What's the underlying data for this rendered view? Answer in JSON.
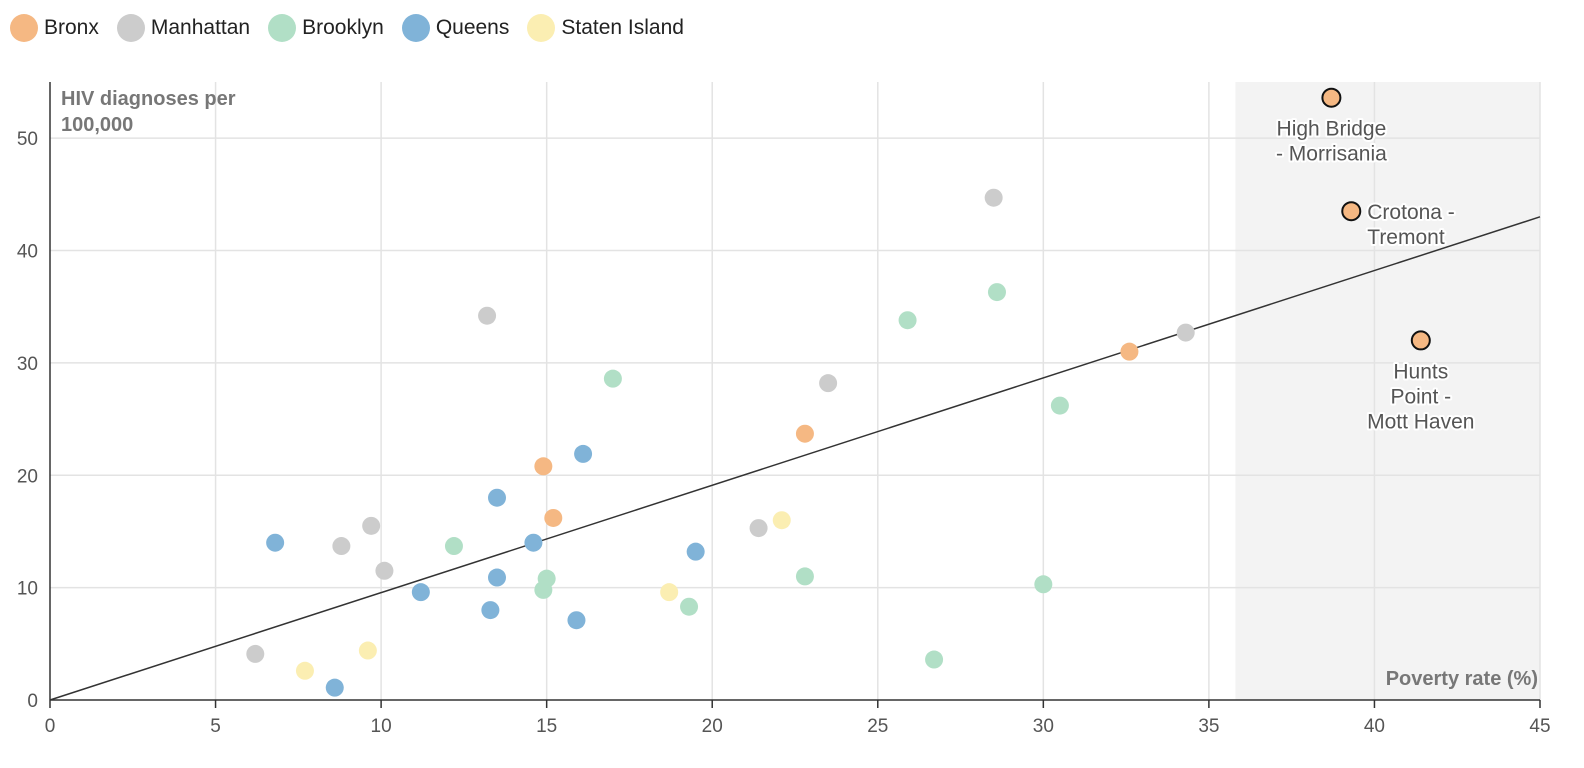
{
  "legend": [
    {
      "name": "Bronx",
      "color": "#f5b883"
    },
    {
      "name": "Manhattan",
      "color": "#cccccc"
    },
    {
      "name": "Brooklyn",
      "color": "#b1dfc6"
    },
    {
      "name": "Queens",
      "color": "#80b3d8"
    },
    {
      "name": "Staten Island",
      "color": "#fbeeb2"
    }
  ],
  "chart_data": {
    "type": "scatter",
    "ylabel": "HIV diagnoses per 100,000",
    "xlabel": "Poverty rate (%)",
    "xlim": [
      0,
      45
    ],
    "ylim": [
      0,
      55
    ],
    "xticks": [
      0,
      5,
      10,
      15,
      20,
      25,
      30,
      35,
      40,
      45
    ],
    "yticks": [
      0,
      10,
      20,
      30,
      40,
      50
    ],
    "grid": true,
    "legend_position": "top-left",
    "shaded_region": {
      "x_from": 35.8,
      "x_to": 45
    },
    "trend_line": [
      [
        0,
        0
      ],
      [
        45,
        43
      ]
    ],
    "series": [
      {
        "name": "Bronx",
        "color": "#f5b883",
        "points": [
          [
            14.9,
            20.8
          ],
          [
            15.2,
            16.2
          ],
          [
            22.8,
            23.7
          ],
          [
            32.6,
            31.0
          ]
        ]
      },
      {
        "name": "Manhattan",
        "color": "#cccccc",
        "points": [
          [
            6.2,
            4.1
          ],
          [
            8.8,
            13.7
          ],
          [
            9.7,
            15.5
          ],
          [
            10.1,
            11.5
          ],
          [
            13.2,
            34.2
          ],
          [
            21.4,
            15.3
          ],
          [
            23.5,
            28.2
          ],
          [
            28.5,
            44.7
          ],
          [
            34.3,
            32.7
          ]
        ]
      },
      {
        "name": "Brooklyn",
        "color": "#b1dfc6",
        "points": [
          [
            12.2,
            13.7
          ],
          [
            14.9,
            9.8
          ],
          [
            15.0,
            10.8
          ],
          [
            17.0,
            28.6
          ],
          [
            19.3,
            8.3
          ],
          [
            22.8,
            11.0
          ],
          [
            25.9,
            33.8
          ],
          [
            26.7,
            3.6
          ],
          [
            28.6,
            36.3
          ],
          [
            30.0,
            10.3
          ],
          [
            30.5,
            26.2
          ]
        ]
      },
      {
        "name": "Queens",
        "color": "#80b3d8",
        "points": [
          [
            6.8,
            14.0
          ],
          [
            8.6,
            1.1
          ],
          [
            11.2,
            9.6
          ],
          [
            13.3,
            8.0
          ],
          [
            13.5,
            18.0
          ],
          [
            13.5,
            10.9
          ],
          [
            14.6,
            14.0
          ],
          [
            15.9,
            7.1
          ],
          [
            16.1,
            21.9
          ],
          [
            19.5,
            13.2
          ]
        ]
      },
      {
        "name": "Staten Island",
        "color": "#fbeeb2",
        "points": [
          [
            7.7,
            2.6
          ],
          [
            9.6,
            4.4
          ],
          [
            18.7,
            9.6
          ],
          [
            22.1,
            16.0
          ]
        ]
      }
    ],
    "highlighted": [
      {
        "label": "High Bridge - Morrisania",
        "lines": [
          "High Bridge",
          "- Morrisania"
        ],
        "x": 38.7,
        "y": 53.6,
        "color": "#f5b883"
      },
      {
        "label": "Crotona - Tremont",
        "lines": [
          "Crotona -",
          "Tremont"
        ],
        "x": 39.3,
        "y": 43.5,
        "color": "#f5b883"
      },
      {
        "label": "Hunts Point - Mott Haven",
        "lines": [
          "Hunts",
          "Point -",
          "Mott Haven"
        ],
        "x": 41.4,
        "y": 32.0,
        "color": "#f5b883"
      }
    ]
  }
}
